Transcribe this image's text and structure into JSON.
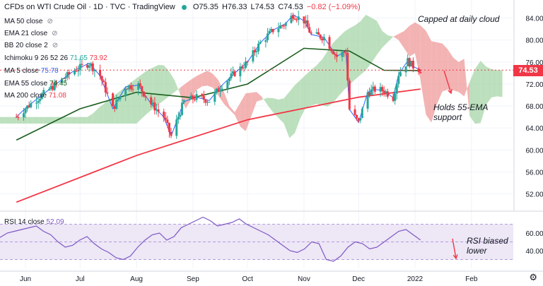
{
  "header": {
    "symbol": "CFDs on WTI Crude Oil",
    "interval": "1D",
    "source": "TVC",
    "platform": "TradingView",
    "open": "O75.35",
    "high": "H76.33",
    "low": "L74.53",
    "close": "C74.53",
    "change": "−0.82 (−1.09%)"
  },
  "indicators": {
    "ma50": {
      "label": "MA 50 close",
      "color": "#787b86"
    },
    "ema21": {
      "label": "EMA 21 close",
      "color": "#787b86"
    },
    "bb20": {
      "label": "BB 20 close 2",
      "color": "#787b86"
    },
    "ichimoku": {
      "label": "Ichimoku 9 26 52 26",
      "v1": "71.65",
      "v2": "73.92",
      "c1": "#26a69a",
      "c2": "#f23645"
    },
    "ma5": {
      "label": "MA 5 close",
      "value": "75.78",
      "color": "#2962ff"
    },
    "ema55": {
      "label": "EMA 55 close",
      "value": "74.45",
      "color": "#1b5e20"
    },
    "ma200": {
      "label": "MA 200 close",
      "value": "71.08",
      "color": "#f23645"
    }
  },
  "rsi_label": {
    "label": "RSI 14 close",
    "value": "52.09"
  },
  "annotations": {
    "cloud": "Capped at daily cloud",
    "ema_1": "Holds 55-EMA",
    "ema_2": "support",
    "rsi_1": "RSI biased",
    "rsi_2": "lower"
  },
  "price_tag": "74.53",
  "colors": {
    "up": "#26a69a",
    "down": "#f23645",
    "cloud_bull": "#a5d6a7",
    "cloud_bear": "#ef9a9a",
    "rsi": "#7e57c2",
    "rsi_band": "#ede7f6"
  },
  "icons": {
    "visibility": "eye-off-icon",
    "settings": "gear-icon"
  },
  "chart_data": [
    {
      "type": "candlestick",
      "title": "CFDs on WTI Crude Oil · 1D · TVC",
      "x_labels": [
        "Jun",
        "Jul",
        "Aug",
        "Sep",
        "Oct",
        "Nov",
        "Dec",
        "2022",
        "Feb"
      ],
      "y_ticks": [
        52,
        56,
        60,
        64,
        68,
        72,
        76,
        80,
        84
      ],
      "ylim": [
        49,
        86
      ],
      "last_price": 74.53,
      "series": [
        {
          "name": "WTI close",
          "points": [
            [
              "2021-05-27",
              66.0
            ],
            [
              "2021-06-01",
              67.6
            ],
            [
              "2021-06-07",
              69.2
            ],
            [
              "2021-06-14",
              71.0
            ],
            [
              "2021-06-21",
              72.8
            ],
            [
              "2021-06-28",
              74.5
            ],
            [
              "2021-07-06",
              75.8
            ],
            [
              "2021-07-12",
              73.5
            ],
            [
              "2021-07-19",
              67.5
            ],
            [
              "2021-07-26",
              71.5
            ],
            [
              "2021-08-02",
              71.8
            ],
            [
              "2021-08-09",
              68.4
            ],
            [
              "2021-08-16",
              66.0
            ],
            [
              "2021-08-20",
              62.5
            ],
            [
              "2021-08-27",
              68.8
            ],
            [
              "2021-09-03",
              69.6
            ],
            [
              "2021-09-10",
              69.0
            ],
            [
              "2021-09-17",
              71.8
            ],
            [
              "2021-09-24",
              74.0
            ],
            [
              "2021-10-01",
              76.0
            ],
            [
              "2021-10-08",
              79.5
            ],
            [
              "2021-10-15",
              81.8
            ],
            [
              "2021-10-22",
              83.0
            ],
            [
              "2021-10-26",
              84.6
            ],
            [
              "2021-11-01",
              83.5
            ],
            [
              "2021-11-05",
              81.0
            ],
            [
              "2021-11-12",
              80.5
            ],
            [
              "2021-11-19",
              77.0
            ],
            [
              "2021-11-24",
              78.0
            ],
            [
              "2021-11-26",
              67.4
            ],
            [
              "2021-12-01",
              65.0
            ],
            [
              "2021-12-06",
              70.5
            ],
            [
              "2021-12-10",
              71.0
            ],
            [
              "2021-12-15",
              70.8
            ],
            [
              "2021-12-20",
              69.5
            ],
            [
              "2021-12-23",
              73.8
            ],
            [
              "2021-12-28",
              76.2
            ],
            [
              "2021-12-31",
              75.2
            ],
            [
              "2022-01-04",
              74.53
            ]
          ]
        },
        {
          "name": "MA 200",
          "points": [
            [
              "2021-05-27",
              50.5
            ],
            [
              "2021-08-01",
              59.0
            ],
            [
              "2021-10-01",
              65.5
            ],
            [
              "2021-12-01",
              69.6
            ],
            [
              "2022-01-04",
              71.08
            ]
          ]
        },
        {
          "name": "EMA 55",
          "points": [
            [
              "2021-05-27",
              61.8
            ],
            [
              "2021-07-01",
              67.5
            ],
            [
              "2021-08-01",
              70.5
            ],
            [
              "2021-09-01",
              69.5
            ],
            [
              "2021-10-01",
              72.0
            ],
            [
              "2021-11-01",
              78.5
            ],
            [
              "2021-11-26",
              78.0
            ],
            [
              "2021-12-15",
              74.5
            ],
            [
              "2022-01-04",
              74.45
            ]
          ]
        }
      ]
    },
    {
      "type": "line",
      "title": "RSI 14 close",
      "ylim": [
        20,
        80
      ],
      "y_ticks": [
        40,
        60
      ],
      "band": [
        30,
        70
      ],
      "series": [
        {
          "name": "RSI 14",
          "values": [
            55,
            60,
            62,
            64,
            66,
            68,
            62,
            58,
            50,
            44,
            46,
            52,
            56,
            48,
            42,
            38,
            32,
            30,
            34,
            44,
            52,
            58,
            60,
            52,
            56,
            66,
            70,
            74,
            78,
            74,
            68,
            70,
            72,
            76,
            70,
            66,
            62,
            58,
            52,
            46,
            40,
            38,
            42,
            50,
            48,
            30,
            28,
            34,
            44,
            50,
            48,
            42,
            44,
            50,
            56,
            62,
            64,
            58,
            52.09
          ]
        }
      ]
    }
  ]
}
